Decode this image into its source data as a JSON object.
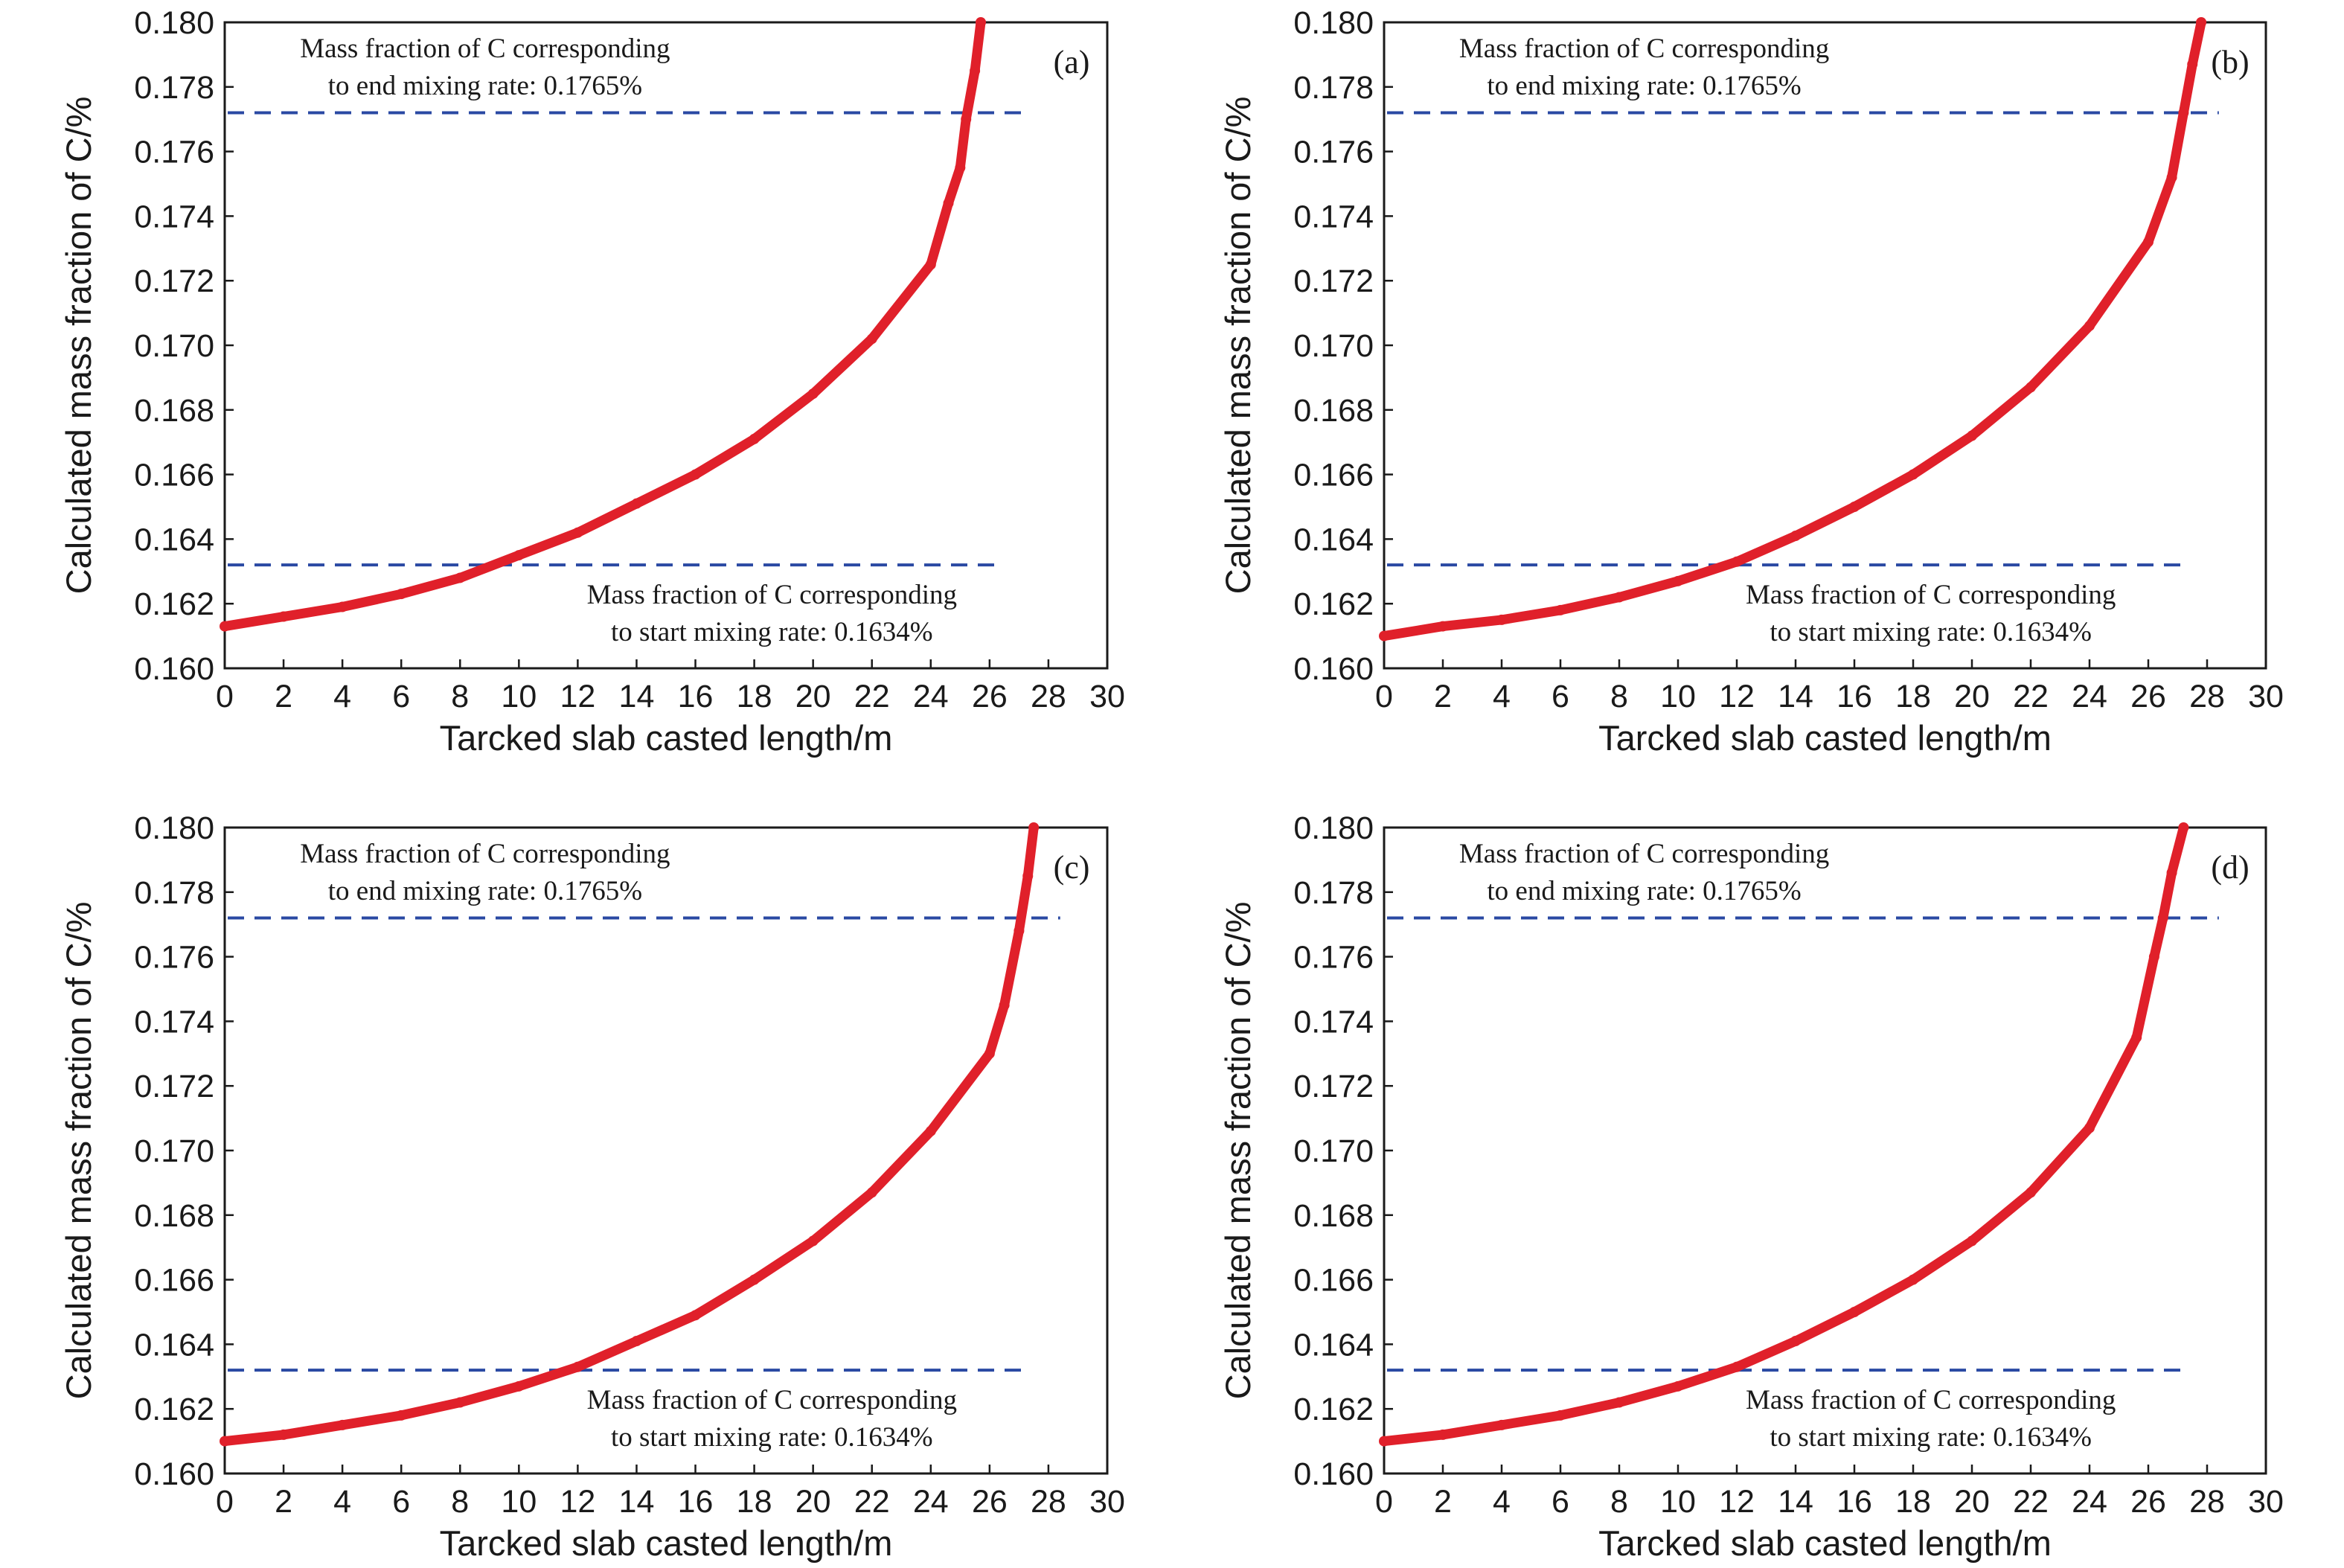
{
  "chart_data": [
    {
      "type": "line",
      "panel": "(a)",
      "xlabel": "Tarcked slab casted length/m",
      "ylabel": "Calculated mass fraction of C/%",
      "xlim": [
        0,
        30
      ],
      "ylim": [
        0.16,
        0.18
      ],
      "xticks": [
        "0",
        "2",
        "4",
        "6",
        "8",
        "10",
        "12",
        "14",
        "16",
        "18",
        "20",
        "22",
        "24",
        "26",
        "28",
        "30"
      ],
      "yticks": [
        "0.160",
        "0.162",
        "0.164",
        "0.166",
        "0.168",
        "0.170",
        "0.172",
        "0.174",
        "0.176",
        "0.178",
        "0.180"
      ],
      "grid": false,
      "series": [
        {
          "color": "#e0202a",
          "marker": "star",
          "x": [
            0,
            2,
            4,
            6,
            8,
            10,
            12,
            14,
            16,
            18,
            20,
            22,
            24,
            24.6,
            25,
            25.2,
            25.5,
            25.7
          ],
          "y": [
            0.1613,
            0.1616,
            0.1619,
            0.1623,
            0.1628,
            0.1635,
            0.1642,
            0.1651,
            0.166,
            0.1671,
            0.1685,
            0.1702,
            0.1725,
            0.1744,
            0.1755,
            0.177,
            0.1785,
            0.18
          ]
        }
      ],
      "reference_lines": [
        {
          "y": 0.1772,
          "x_end": 27.4,
          "color": "#2a49a3",
          "style": "dashed"
        },
        {
          "y": 0.1632,
          "x_end": 26.4,
          "color": "#2a49a3",
          "style": "dashed"
        }
      ],
      "annotations": {
        "end_line1": "Mass fraction of C corresponding",
        "end_line2": "to end mixing rate: 0.1765%",
        "start_line1": "Mass fraction of C corresponding",
        "start_line2": "to start mixing rate: 0.1634%"
      }
    },
    {
      "type": "line",
      "panel": "(b)",
      "xlabel": "Tarcked slab casted length/m",
      "ylabel": "Calculated mass fraction of C/%",
      "xlim": [
        0,
        30
      ],
      "ylim": [
        0.16,
        0.18
      ],
      "xticks": [
        "0",
        "2",
        "4",
        "6",
        "8",
        "10",
        "12",
        "14",
        "16",
        "18",
        "20",
        "22",
        "24",
        "26",
        "28",
        "30"
      ],
      "yticks": [
        "0.160",
        "0.162",
        "0.164",
        "0.166",
        "0.168",
        "0.170",
        "0.172",
        "0.174",
        "0.176",
        "0.178",
        "0.180"
      ],
      "grid": false,
      "series": [
        {
          "color": "#e0202a",
          "marker": "star",
          "x": [
            0,
            2,
            4,
            6,
            8,
            10,
            12,
            14,
            16,
            18,
            20,
            22,
            24,
            26,
            26.8,
            27.2,
            27.5,
            27.8
          ],
          "y": [
            0.161,
            0.1613,
            0.1615,
            0.1618,
            0.1622,
            0.1627,
            0.1633,
            0.1641,
            0.165,
            0.166,
            0.1672,
            0.1687,
            0.1706,
            0.1732,
            0.1752,
            0.1772,
            0.1787,
            0.18
          ]
        }
      ],
      "reference_lines": [
        {
          "y": 0.1772,
          "x_end": 28.4,
          "color": "#2a49a3",
          "style": "dashed"
        },
        {
          "y": 0.1632,
          "x_end": 27.4,
          "color": "#2a49a3",
          "style": "dashed"
        }
      ],
      "annotations": {
        "end_line1": "Mass fraction of C corresponding",
        "end_line2": "to end mixing rate: 0.1765%",
        "start_line1": "Mass fraction of C corresponding",
        "start_line2": "to start mixing rate: 0.1634%"
      }
    },
    {
      "type": "line",
      "panel": "(c)",
      "xlabel": "Tarcked slab casted length/m",
      "ylabel": "Calculated mass fraction of C/%",
      "xlim": [
        0,
        30
      ],
      "ylim": [
        0.16,
        0.18
      ],
      "xticks": [
        "0",
        "2",
        "4",
        "6",
        "8",
        "10",
        "12",
        "14",
        "16",
        "18",
        "20",
        "22",
        "24",
        "26",
        "28",
        "30"
      ],
      "yticks": [
        "0.160",
        "0.162",
        "0.164",
        "0.166",
        "0.168",
        "0.170",
        "0.172",
        "0.174",
        "0.176",
        "0.178",
        "0.180"
      ],
      "grid": false,
      "series": [
        {
          "color": "#e0202a",
          "marker": "star",
          "x": [
            0,
            2,
            4,
            6,
            8,
            10,
            12,
            14,
            16,
            18,
            20,
            22,
            24,
            26,
            26.5,
            27,
            27.3,
            27.5
          ],
          "y": [
            0.161,
            0.1612,
            0.1615,
            0.1618,
            0.1622,
            0.1627,
            0.1633,
            0.1641,
            0.1649,
            0.166,
            0.1672,
            0.1687,
            0.1706,
            0.173,
            0.1745,
            0.1768,
            0.1785,
            0.18
          ]
        }
      ],
      "reference_lines": [
        {
          "y": 0.1772,
          "x_end": 28.4,
          "color": "#2a49a3",
          "style": "dashed"
        },
        {
          "y": 0.1632,
          "x_end": 27.4,
          "color": "#2a49a3",
          "style": "dashed"
        }
      ],
      "annotations": {
        "end_line1": "Mass fraction of C corresponding",
        "end_line2": "to end mixing rate: 0.1765%",
        "start_line1": "Mass fraction of C corresponding",
        "start_line2": "to start mixing rate: 0.1634%"
      }
    },
    {
      "type": "line",
      "panel": "(d)",
      "xlabel": "Tarcked slab casted length/m",
      "ylabel": "Calculated mass fraction of C/%",
      "xlim": [
        0,
        30
      ],
      "ylim": [
        0.16,
        0.18
      ],
      "xticks": [
        "0",
        "2",
        "4",
        "6",
        "8",
        "10",
        "12",
        "14",
        "16",
        "18",
        "20",
        "22",
        "24",
        "26",
        "28",
        "30"
      ],
      "yticks": [
        "0.160",
        "0.162",
        "0.164",
        "0.166",
        "0.168",
        "0.170",
        "0.172",
        "0.174",
        "0.176",
        "0.178",
        "0.180"
      ],
      "grid": false,
      "series": [
        {
          "color": "#e0202a",
          "marker": "star",
          "x": [
            0,
            2,
            4,
            6,
            8,
            10,
            12,
            14,
            16,
            18,
            20,
            22,
            24,
            25.6,
            26.2,
            26.5,
            26.8,
            27.2
          ],
          "y": [
            0.161,
            0.1612,
            0.1615,
            0.1618,
            0.1622,
            0.1627,
            0.1633,
            0.1641,
            0.165,
            0.166,
            0.1672,
            0.1687,
            0.1707,
            0.1735,
            0.176,
            0.1772,
            0.1786,
            0.18
          ]
        }
      ],
      "reference_lines": [
        {
          "y": 0.1772,
          "x_end": 28.4,
          "color": "#2a49a3",
          "style": "dashed"
        },
        {
          "y": 0.1632,
          "x_end": 27.4,
          "color": "#2a49a3",
          "style": "dashed"
        }
      ],
      "annotations": {
        "end_line1": "Mass fraction of C corresponding",
        "end_line2": "to end mixing rate: 0.1765%",
        "start_line1": "Mass fraction of C corresponding",
        "start_line2": "to start mixing rate: 0.1634%"
      }
    }
  ]
}
